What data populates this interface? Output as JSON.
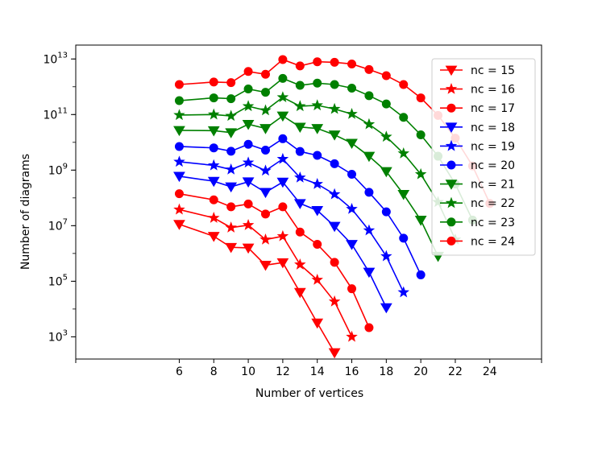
{
  "chart_data": {
    "type": "line",
    "xlabel": "Number of vertices",
    "ylabel": "Number of diagrams",
    "xlim": [
      0,
      27
    ],
    "ylim_log10": [
      2.2,
      13.5
    ],
    "y_scale": "log",
    "x_ticks": [
      6,
      8,
      10,
      12,
      14,
      16,
      18,
      20,
      22,
      24
    ],
    "x_minor_ticks": [
      0,
      27
    ],
    "y_ticks": [
      {
        "exp": 3,
        "base": "10",
        "sup": "3"
      },
      {
        "exp": 5,
        "base": "10",
        "sup": "5"
      },
      {
        "exp": 7,
        "base": "10",
        "sup": "7"
      },
      {
        "exp": 9,
        "base": "10",
        "sup": "9"
      },
      {
        "exp": 11,
        "base": "10",
        "sup": "11"
      },
      {
        "exp": 13,
        "base": "10",
        "sup": "13"
      }
    ],
    "grid": false,
    "legend_position": "top-right",
    "series": [
      {
        "name": "nc = 15",
        "color": "#ff0000",
        "marker": "triangle-down",
        "points": [
          [
            6,
            7.05
          ],
          [
            8,
            6.62
          ],
          [
            9,
            6.22
          ],
          [
            10,
            6.2
          ],
          [
            11,
            5.58
          ],
          [
            12,
            5.67
          ],
          [
            13,
            4.6
          ],
          [
            14,
            3.5
          ],
          [
            15,
            2.43
          ]
        ]
      },
      {
        "name": "nc = 16",
        "color": "#ff0000",
        "marker": "star",
        "points": [
          [
            6,
            7.58
          ],
          [
            8,
            7.28
          ],
          [
            9,
            6.93
          ],
          [
            10,
            7.02
          ],
          [
            11,
            6.5
          ],
          [
            12,
            6.62
          ],
          [
            13,
            5.6
          ],
          [
            14,
            5.05
          ],
          [
            15,
            4.27
          ],
          [
            16,
            3.0
          ]
        ]
      },
      {
        "name": "nc = 17",
        "color": "#ff0000",
        "marker": "circle",
        "points": [
          [
            6,
            8.15
          ],
          [
            8,
            7.93
          ],
          [
            9,
            7.68
          ],
          [
            10,
            7.78
          ],
          [
            11,
            7.42
          ],
          [
            12,
            7.68
          ],
          [
            13,
            6.77
          ],
          [
            14,
            6.33
          ],
          [
            15,
            5.68
          ],
          [
            16,
            4.73
          ],
          [
            17,
            3.33
          ]
        ]
      },
      {
        "name": "nc = 18",
        "color": "#0000ff",
        "marker": "triangle-down",
        "points": [
          [
            6,
            8.78
          ],
          [
            8,
            8.6
          ],
          [
            9,
            8.4
          ],
          [
            10,
            8.58
          ],
          [
            11,
            8.2
          ],
          [
            12,
            8.57
          ],
          [
            13,
            7.8
          ],
          [
            14,
            7.55
          ],
          [
            15,
            6.98
          ],
          [
            16,
            6.33
          ],
          [
            17,
            5.33
          ],
          [
            18,
            4.05
          ]
        ]
      },
      {
        "name": "nc = 19",
        "color": "#0000ff",
        "marker": "star",
        "points": [
          [
            6,
            9.3
          ],
          [
            8,
            9.17
          ],
          [
            9,
            9.02
          ],
          [
            10,
            9.27
          ],
          [
            11,
            8.98
          ],
          [
            12,
            9.4
          ],
          [
            13,
            8.73
          ],
          [
            14,
            8.5
          ],
          [
            15,
            8.13
          ],
          [
            16,
            7.6
          ],
          [
            17,
            6.83
          ],
          [
            18,
            5.9
          ],
          [
            19,
            4.6
          ]
        ]
      },
      {
        "name": "nc = 20",
        "color": "#0000ff",
        "marker": "circle",
        "points": [
          [
            6,
            9.85
          ],
          [
            8,
            9.8
          ],
          [
            9,
            9.68
          ],
          [
            10,
            9.93
          ],
          [
            11,
            9.72
          ],
          [
            12,
            10.13
          ],
          [
            13,
            9.67
          ],
          [
            14,
            9.53
          ],
          [
            15,
            9.23
          ],
          [
            16,
            8.85
          ],
          [
            17,
            8.2
          ],
          [
            18,
            7.5
          ],
          [
            19,
            6.55
          ],
          [
            20,
            5.23
          ]
        ]
      },
      {
        "name": "nc = 21",
        "color": "#008000",
        "marker": "triangle-down",
        "points": [
          [
            6,
            10.43
          ],
          [
            8,
            10.42
          ],
          [
            9,
            10.35
          ],
          [
            10,
            10.65
          ],
          [
            11,
            10.5
          ],
          [
            12,
            10.95
          ],
          [
            13,
            10.55
          ],
          [
            14,
            10.5
          ],
          [
            15,
            10.27
          ],
          [
            16,
            9.97
          ],
          [
            17,
            9.5
          ],
          [
            18,
            8.95
          ],
          [
            19,
            8.13
          ],
          [
            20,
            7.2
          ],
          [
            21,
            5.9
          ]
        ]
      },
      {
        "name": "nc = 22",
        "color": "#008000",
        "marker": "star",
        "points": [
          [
            6,
            10.98
          ],
          [
            8,
            11.0
          ],
          [
            9,
            10.95
          ],
          [
            10,
            11.3
          ],
          [
            11,
            11.15
          ],
          [
            12,
            11.62
          ],
          [
            13,
            11.3
          ],
          [
            14,
            11.33
          ],
          [
            15,
            11.2
          ],
          [
            16,
            11.02
          ],
          [
            17,
            10.65
          ],
          [
            18,
            10.2
          ],
          [
            19,
            9.6
          ],
          [
            20,
            8.85
          ],
          [
            21,
            7.85
          ],
          [
            22,
            6.5
          ]
        ]
      },
      {
        "name": "nc = 23",
        "color": "#008000",
        "marker": "circle",
        "points": [
          [
            6,
            11.5
          ],
          [
            8,
            11.6
          ],
          [
            9,
            11.57
          ],
          [
            10,
            11.92
          ],
          [
            11,
            11.8
          ],
          [
            12,
            12.3
          ],
          [
            13,
            12.05
          ],
          [
            14,
            12.13
          ],
          [
            15,
            12.08
          ],
          [
            16,
            11.95
          ],
          [
            17,
            11.68
          ],
          [
            18,
            11.38
          ],
          [
            19,
            10.9
          ],
          [
            20,
            10.27
          ],
          [
            21,
            9.5
          ],
          [
            22,
            8.5
          ],
          [
            23,
            7.2
          ]
        ]
      },
      {
        "name": "nc = 24",
        "color": "#ff0000",
        "marker": "circle",
        "points": [
          [
            6,
            12.08
          ],
          [
            8,
            12.17
          ],
          [
            9,
            12.15
          ],
          [
            10,
            12.55
          ],
          [
            11,
            12.45
          ],
          [
            12,
            12.98
          ],
          [
            13,
            12.75
          ],
          [
            14,
            12.9
          ],
          [
            15,
            12.88
          ],
          [
            16,
            12.82
          ],
          [
            17,
            12.62
          ],
          [
            18,
            12.4
          ],
          [
            19,
            12.08
          ],
          [
            20,
            11.6
          ],
          [
            21,
            10.97
          ],
          [
            22,
            10.15
          ],
          [
            23,
            9.15
          ],
          [
            24,
            7.8
          ]
        ]
      }
    ]
  }
}
